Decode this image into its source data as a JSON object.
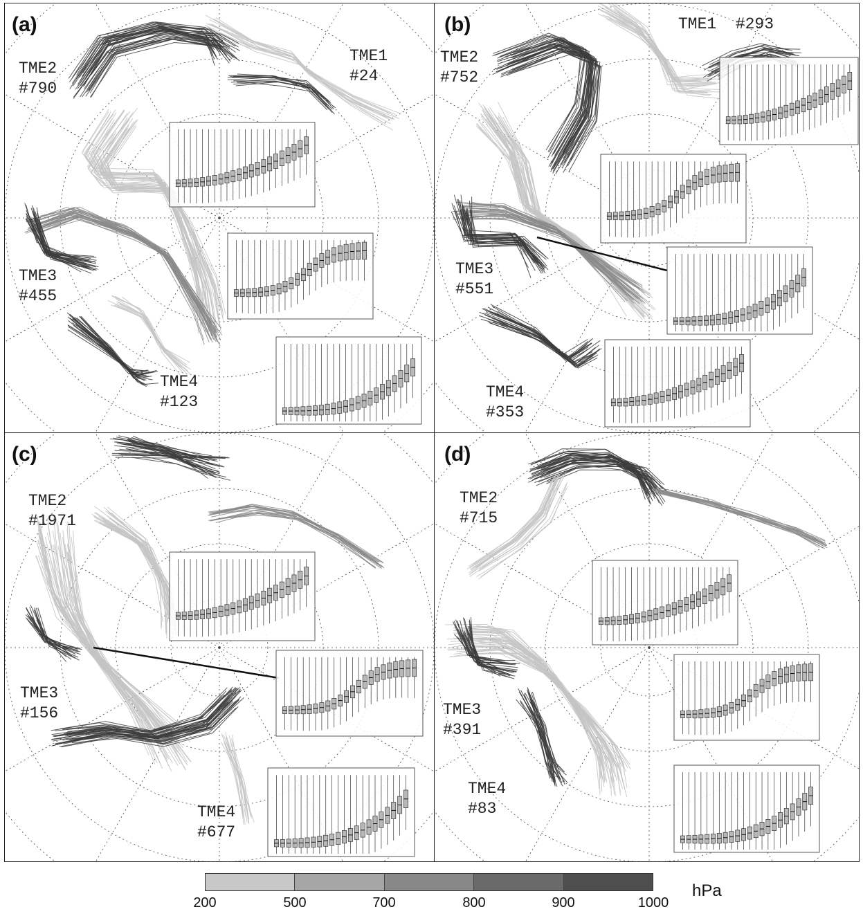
{
  "panels": [
    {
      "label": "(a)",
      "tme": [
        {
          "name": "TME1",
          "count": "#24"
        },
        {
          "name": "TME2",
          "count": "#790"
        },
        {
          "name": "TME3",
          "count": "#455"
        },
        {
          "name": "TME4",
          "count": "#123"
        }
      ]
    },
    {
      "label": "(b)",
      "tme": [
        {
          "name": "TME1",
          "count": "#293"
        },
        {
          "name": "TME2",
          "count": "#752"
        },
        {
          "name": "TME3",
          "count": "#551"
        },
        {
          "name": "TME4",
          "count": "#353"
        }
      ]
    },
    {
      "label": "(c)",
      "tme": [
        {
          "name": "TME2",
          "count": "#1971"
        },
        {
          "name": "TME3",
          "count": "#156"
        },
        {
          "name": "TME4",
          "count": "#677"
        }
      ]
    },
    {
      "label": "(d)",
      "tme": [
        {
          "name": "TME2",
          "count": "#715"
        },
        {
          "name": "TME3",
          "count": "#391"
        },
        {
          "name": "TME4",
          "count": "#83"
        }
      ]
    }
  ],
  "legend": {
    "unit": "hPa",
    "ticks": [
      "200",
      "500",
      "700",
      "800",
      "900",
      "1000"
    ],
    "colors": [
      "#c8c8c8",
      "#a6a6a6",
      "#888888",
      "#6a6a6a",
      "#4e4e4e",
      "#3a3a3a"
    ]
  },
  "colors": {
    "trajectory_light": "#c4c4c4",
    "trajectory_mid": "#8a8a8a",
    "trajectory_dark": "#3c3c3c",
    "grid": "#444444"
  }
}
